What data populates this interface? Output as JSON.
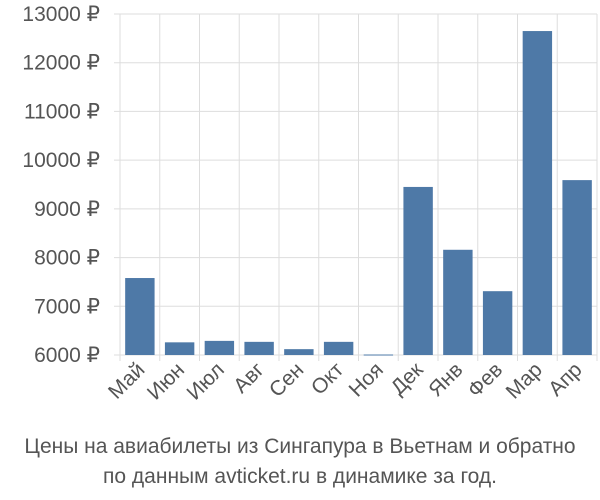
{
  "chart_data": {
    "type": "bar",
    "title": "",
    "xlabel": "",
    "ylabel": "",
    "categories": [
      "Май",
      "Июн",
      "Июл",
      "Авг",
      "Сен",
      "Окт",
      "Ноя",
      "Дек",
      "Янв",
      "Фев",
      "Мар",
      "Апр"
    ],
    "values": [
      7580,
      6260,
      6290,
      6270,
      6120,
      6270,
      6010,
      9450,
      8160,
      7310,
      12650,
      9590
    ],
    "ylim": [
      6000,
      13000
    ],
    "yticks": [
      6000,
      7000,
      8000,
      9000,
      10000,
      11000,
      12000,
      13000
    ],
    "ytick_labels": [
      "6000 ₽",
      "7000 ₽",
      "8000 ₽",
      "9000 ₽",
      "10000 ₽",
      "11000 ₽",
      "12000 ₽",
      "13000 ₽"
    ],
    "grid": true,
    "bar_color": "#4e79a7",
    "caption_lines": [
      "Цены на авиабилеты из Сингапура в Вьетнам и обратно",
      "по данным avticket.ru в динамике за год."
    ]
  }
}
